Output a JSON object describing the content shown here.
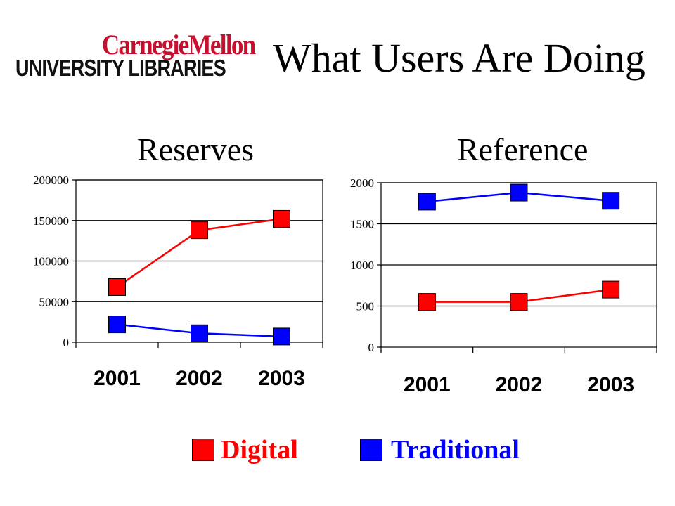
{
  "logo": {
    "line1": "CarnegieMellon",
    "line2": "UNIVERSITY LIBRARIES"
  },
  "title": "What Users Are Doing",
  "colors": {
    "digital": "#ff0000",
    "traditional": "#0000ff",
    "logo_red": "#c8102e"
  },
  "chart_data": [
    {
      "type": "line",
      "title": "Reserves",
      "categories": [
        "2001",
        "2002",
        "2003"
      ],
      "series": [
        {
          "name": "Digital",
          "values": [
            68000,
            138000,
            152000
          ]
        },
        {
          "name": "Traditional",
          "values": [
            22000,
            11000,
            7000
          ]
        }
      ],
      "ylim": [
        0,
        200000
      ],
      "yticks": [
        "0",
        "50000",
        "100000",
        "150000",
        "200000"
      ],
      "grid": true
    },
    {
      "type": "line",
      "title": "Reference",
      "categories": [
        "2001",
        "2002",
        "2003"
      ],
      "series": [
        {
          "name": "Digital",
          "values": [
            550,
            550,
            700
          ]
        },
        {
          "name": "Traditional",
          "values": [
            1770,
            1880,
            1780
          ]
        }
      ],
      "ylim": [
        0,
        2000
      ],
      "yticks": [
        "0",
        "500",
        "1000",
        "1500",
        "2000"
      ],
      "grid": true
    }
  ],
  "legend": {
    "digital": "Digital",
    "traditional": "Traditional",
    "placement": "bottom"
  }
}
